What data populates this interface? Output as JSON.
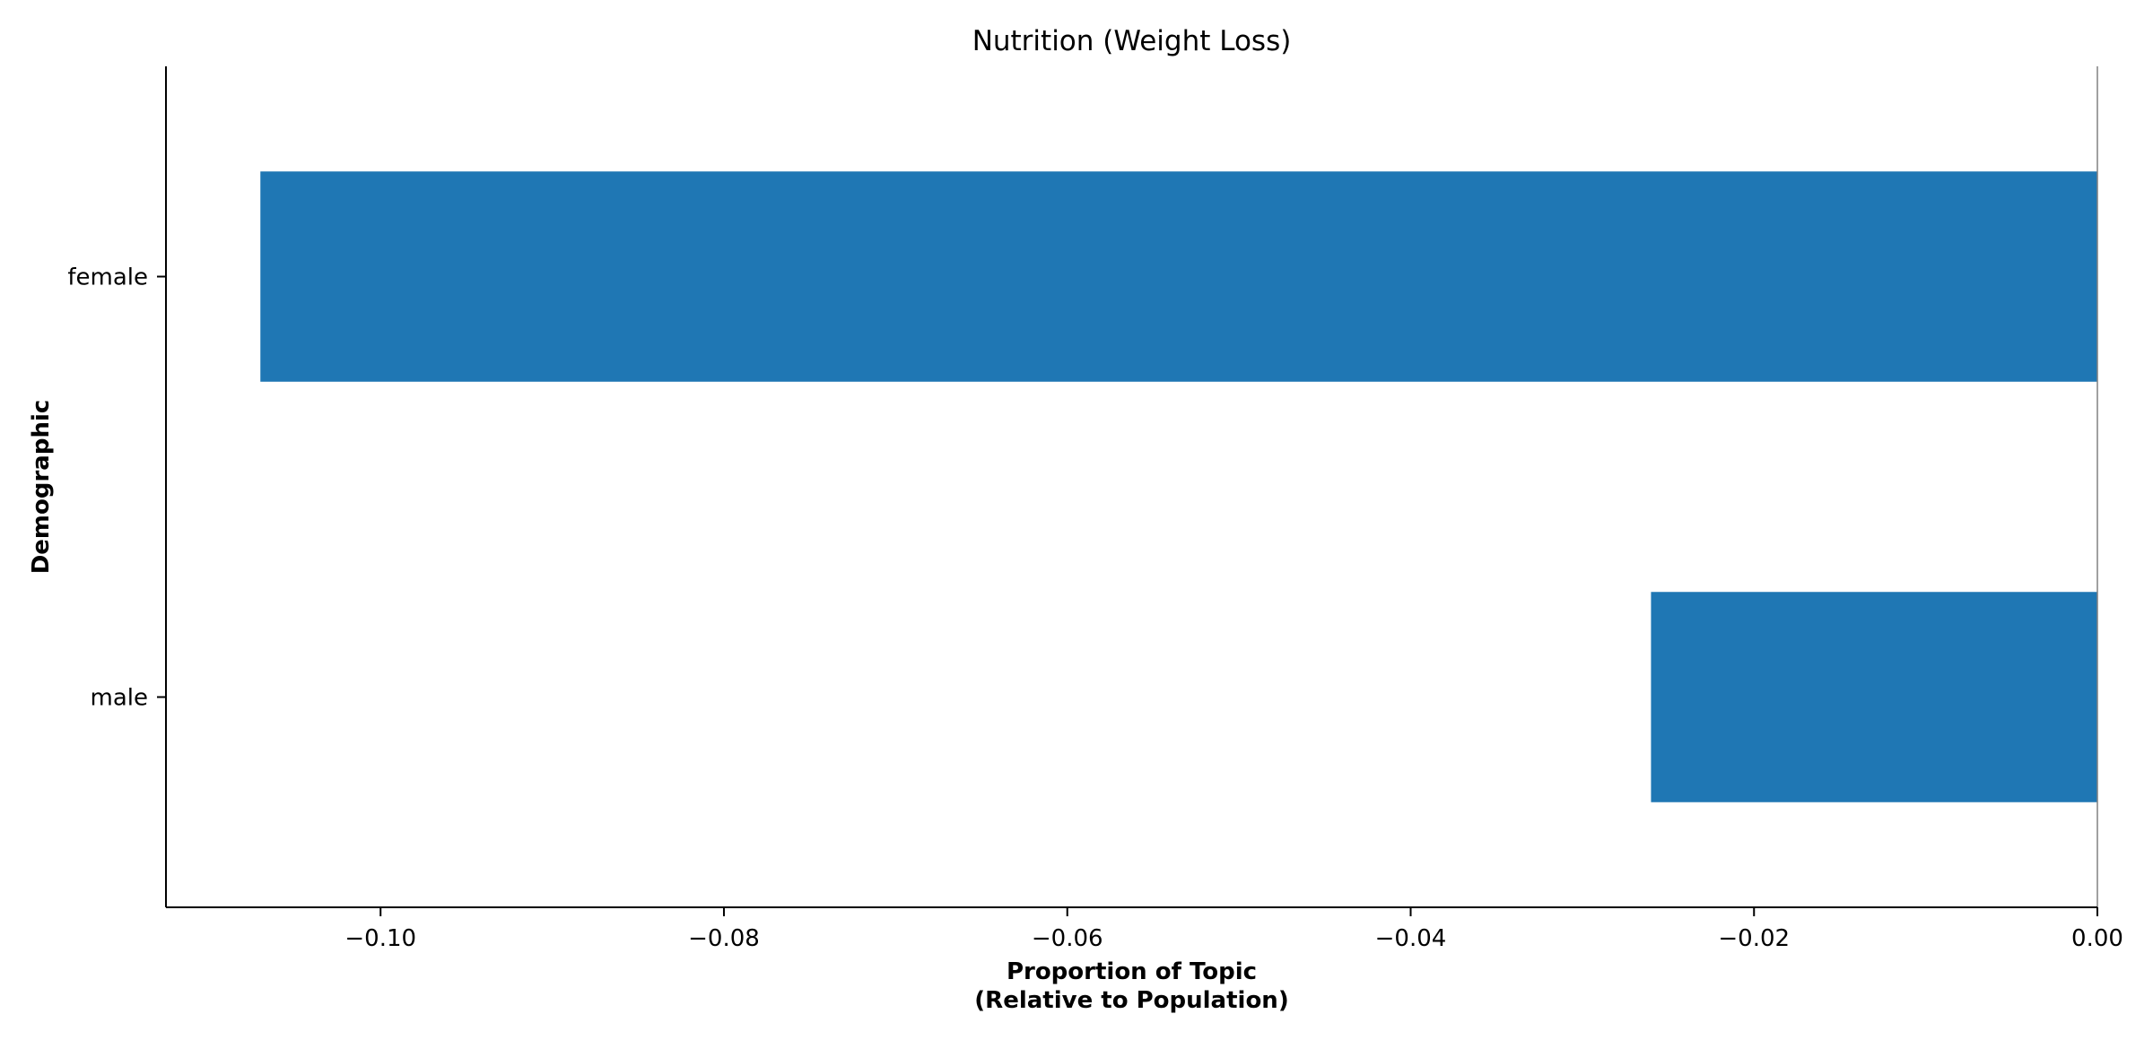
{
  "chart_data": {
    "type": "bar",
    "orientation": "horizontal",
    "title": "Nutrition (Weight Loss)",
    "xlabel": [
      "Proportion of Topic",
      "(Relative to Population)"
    ],
    "ylabel": "Demographic",
    "categories": [
      "female",
      "male"
    ],
    "values": [
      -0.107,
      -0.026
    ],
    "xlim": [
      -0.1125,
      0.0
    ],
    "xticks": [
      -0.1,
      -0.08,
      -0.06,
      -0.04,
      -0.02,
      0.0
    ],
    "xtick_labels": [
      "−0.10",
      "−0.08",
      "−0.06",
      "−0.04",
      "−0.02",
      "0.00"
    ],
    "bar_color": "#1f77b4",
    "zero_line_color": "#808080",
    "grid": false,
    "legend": "none"
  }
}
